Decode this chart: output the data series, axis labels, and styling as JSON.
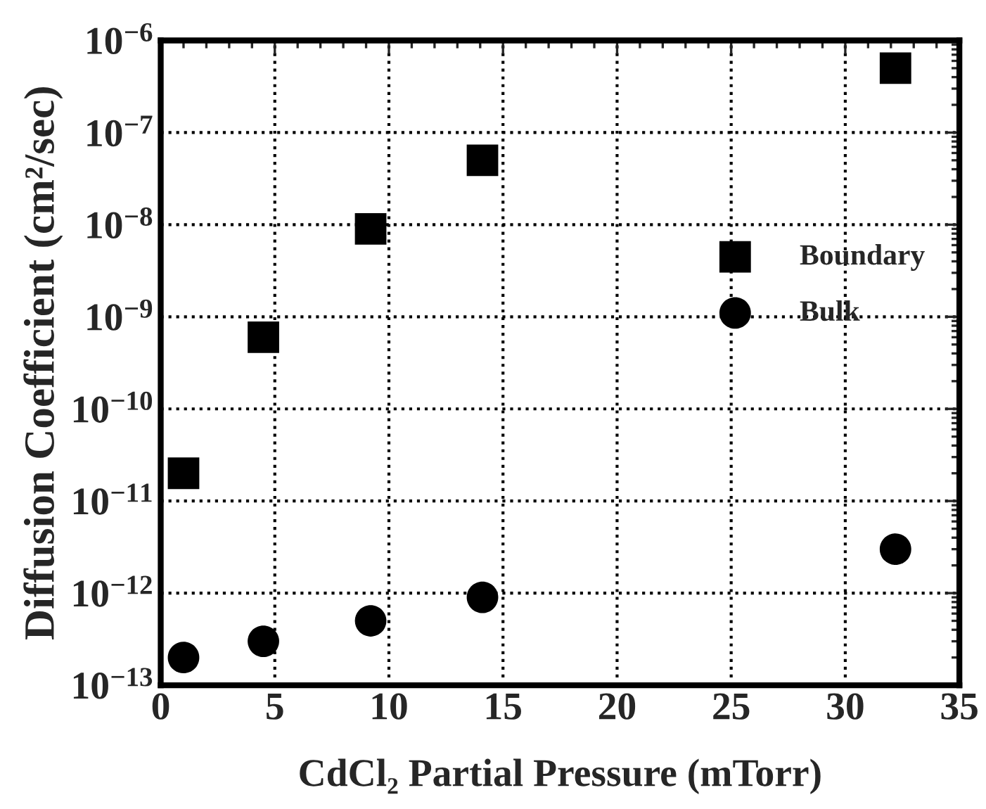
{
  "chart_data": {
    "type": "scatter",
    "xlabel": "CdCl₂ Partial Pressure (mTorr)",
    "ylabel": "Diffusion Coefficient (cm²/sec)",
    "series": [
      {
        "name": "Boundary",
        "color": "#000000",
        "marker": "square",
        "x": [
          1.0,
          4.5,
          9.2,
          14.1,
          32.2
        ],
        "values": [
          2e-11,
          6e-10,
          9e-09,
          5e-08,
          5e-07
        ]
      },
      {
        "name": "Bulk",
        "color": "#000000",
        "marker": "circle",
        "x": [
          1.0,
          4.5,
          9.2,
          14.1,
          32.2
        ],
        "values": [
          2e-13,
          3e-13,
          5e-13,
          9e-13,
          3e-12
        ]
      }
    ],
    "log": "y",
    "xlim": [
      0,
      35
    ],
    "xticks": [
      0,
      5,
      10,
      15,
      20,
      25,
      30,
      35
    ],
    "ylim": [
      1e-13,
      1e-06
    ],
    "yticks": [
      {
        "value": 1e-13,
        "label": "10$^{−13}$"
      },
      {
        "value": 1e-12,
        "label": "10$^{−12}$"
      },
      {
        "value": 1e-11,
        "label": "10$^{−11}$"
      },
      {
        "value": 1e-10,
        "label": "10$^{−10}$"
      },
      {
        "value": 1e-09,
        "label": "10$^{−9}$"
      },
      {
        "value": 1e-08,
        "label": "10$^{−8}$"
      },
      {
        "value": 1e-07,
        "label": "10$^{−7}$"
      },
      {
        "value": 1e-06,
        "label": "10$^{−6}$"
      }
    ],
    "grid": true,
    "legend": "right",
    "line_style": "dotted"
  }
}
